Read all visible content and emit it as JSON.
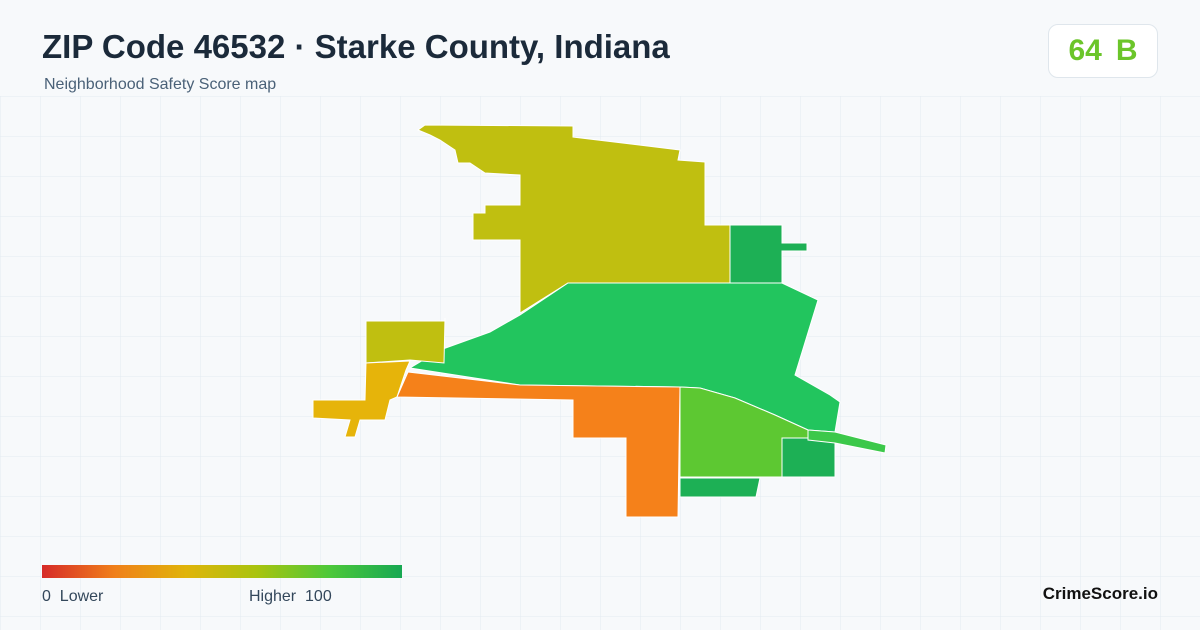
{
  "header": {
    "title": "ZIP Code 46532 · Starke County, Indiana",
    "subtitle": "Neighborhood Safety Score map"
  },
  "score": {
    "value": 64,
    "grade": "B"
  },
  "legend": {
    "min": 0,
    "min_label": "Lower",
    "max_label": "Higher",
    "max": 100
  },
  "brand": "CrimeScore.io"
}
